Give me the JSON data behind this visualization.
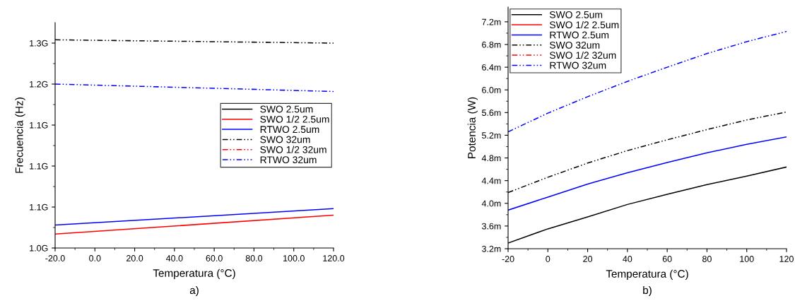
{
  "chart_data": [
    {
      "type": "line",
      "xlabel": "Temperatura (°C)",
      "ylabel": "Frecuencia (Hz)",
      "annotations": [
        "a)"
      ],
      "x": [
        -20,
        120
      ],
      "xlim": [
        -20,
        120
      ],
      "xticks": [
        {
          "value": -20,
          "label": "-20.0"
        },
        {
          "value": 0,
          "label": "0.0"
        },
        {
          "value": 20,
          "label": "20.0"
        },
        {
          "value": 40,
          "label": "40.0"
        },
        {
          "value": 60,
          "label": "60.0"
        },
        {
          "value": 80,
          "label": "80.0"
        },
        {
          "value": 100,
          "label": "100.0"
        },
        {
          "value": 120,
          "label": "120.0"
        }
      ],
      "ylim": [
        1.0,
        1.275
      ],
      "yticks": [
        {
          "value": 1.0,
          "label": "1.0G"
        },
        {
          "value": 1.05,
          "label": "1.1G"
        },
        {
          "value": 1.1,
          "label": "1.1G"
        },
        {
          "value": 1.15,
          "label": "1.1G"
        },
        {
          "value": 1.2,
          "label": "1.2G"
        },
        {
          "value": 1.25,
          "label": "1.3G"
        }
      ],
      "legend": "right",
      "grid": false,
      "series": [
        {
          "name": "SWO 2.5um",
          "color": "#000000",
          "line_style": "solid",
          "values": [
            null,
            null
          ]
        },
        {
          "name": "SWO 1/2 2.5um",
          "color": "#ff0000",
          "line_style": "solid",
          "values": [
            1.017,
            1.04
          ]
        },
        {
          "name": "RTWO 2.5um",
          "color": "#0000ff",
          "line_style": "solid",
          "values": [
            1.028,
            1.048
          ]
        },
        {
          "name": "SWO 32um",
          "color": "#000000",
          "line_style": "dashed",
          "values": [
            1.254,
            1.25
          ]
        },
        {
          "name": "SWO 1/2 32um",
          "color": "#ff0000",
          "line_style": "dashed",
          "values": [
            null,
            null
          ]
        },
        {
          "name": "RTWO 32um",
          "color": "#0000ff",
          "line_style": "dashed",
          "values": [
            1.2,
            1.191
          ]
        }
      ]
    },
    {
      "type": "line",
      "xlabel": "Temperatura (°C)",
      "ylabel": "Potencia (W)",
      "annotations": [
        "b)"
      ],
      "x": [
        -20,
        0,
        20,
        40,
        60,
        80,
        100,
        120
      ],
      "xlim": [
        -20,
        120
      ],
      "xticks": [
        -20,
        0,
        20,
        40,
        60,
        80,
        100,
        120
      ],
      "ylim": [
        3.2,
        7.46
      ],
      "yticks": [
        {
          "value": 3.2,
          "label": "3.2m"
        },
        {
          "value": 3.6,
          "label": "3.6m"
        },
        {
          "value": 4.0,
          "label": "4.0m"
        },
        {
          "value": 4.4,
          "label": "4.4m"
        },
        {
          "value": 4.8,
          "label": "4.8m"
        },
        {
          "value": 5.2,
          "label": "5.2m"
        },
        {
          "value": 5.6,
          "label": "5.6m"
        },
        {
          "value": 6.0,
          "label": "6.0m"
        },
        {
          "value": 6.4,
          "label": "6.4m"
        },
        {
          "value": 6.8,
          "label": "6.8m"
        },
        {
          "value": 7.2,
          "label": "7.2m"
        }
      ],
      "legend": "top left",
      "grid": false,
      "series": [
        {
          "name": "SWO 2.5um",
          "color": "#000000",
          "line_style": "solid",
          "values": [
            3.3,
            3.55,
            3.76,
            3.98,
            4.16,
            4.33,
            4.48,
            4.64
          ]
        },
        {
          "name": "SWO 1/2 2.5um",
          "color": "#ff0000",
          "line_style": "solid",
          "values": [
            null,
            null,
            null,
            null,
            null,
            null,
            null,
            null
          ]
        },
        {
          "name": "RTWO 2.5um",
          "color": "#0000ff",
          "line_style": "solid",
          "values": [
            3.88,
            4.11,
            4.34,
            4.54,
            4.72,
            4.89,
            5.04,
            5.17
          ]
        },
        {
          "name": "SWO 32um",
          "color": "#000000",
          "line_style": "dashed",
          "values": [
            4.19,
            4.46,
            4.71,
            4.93,
            5.12,
            5.3,
            5.47,
            5.61
          ]
        },
        {
          "name": "SWO 1/2 32um",
          "color": "#ff0000",
          "line_style": "dashed",
          "values": [
            null,
            null,
            null,
            null,
            null,
            null,
            null,
            null
          ]
        },
        {
          "name": "RTWO 32um",
          "color": "#0000ff",
          "line_style": "dashed",
          "values": [
            5.26,
            5.59,
            5.88,
            6.15,
            6.4,
            6.64,
            6.85,
            7.03
          ]
        }
      ]
    }
  ]
}
